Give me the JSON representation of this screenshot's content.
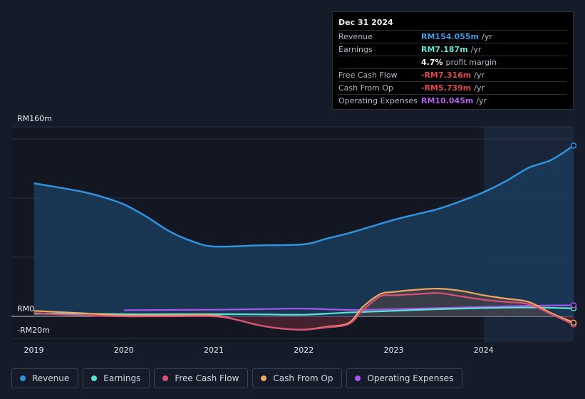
{
  "tooltip": {
    "date": "Dec 31 2024",
    "rows": [
      {
        "label": "Revenue",
        "value": "RM154.055m",
        "unit": "/yr",
        "color": "#3b9be8"
      },
      {
        "label": "Earnings",
        "value": "RM7.187m",
        "unit": "/yr",
        "color": "#5fe3d3"
      },
      {
        "label": "",
        "value": "4.7%",
        "unit": "profit margin",
        "color": "#ffffff"
      },
      {
        "label": "Free Cash Flow",
        "value": "-RM7.316m",
        "unit": "/yr",
        "color": "#e0464d"
      },
      {
        "label": "Cash From Op",
        "value": "-RM5.739m",
        "unit": "/yr",
        "color": "#e0464d"
      },
      {
        "label": "Operating Expenses",
        "value": "RM10.045m",
        "unit": "/yr",
        "color": "#b35cf0"
      }
    ]
  },
  "legend": [
    {
      "label": "Revenue",
      "color": "#2f93e0"
    },
    {
      "label": "Earnings",
      "color": "#5fe3d3"
    },
    {
      "label": "Free Cash Flow",
      "color": "#d9507a"
    },
    {
      "label": "Cash From Op",
      "color": "#f0a860"
    },
    {
      "label": "Operating Expenses",
      "color": "#a855f0"
    }
  ],
  "chart_data": {
    "type": "line",
    "y_tick_labels": [
      "RM160m",
      "RM0",
      "-RM20m"
    ],
    "ylim": [
      -20,
      160
    ],
    "xlim": [
      2018.75,
      2025.0
    ],
    "x_ticks": [
      2019,
      2020,
      2021,
      2022,
      2023,
      2024
    ],
    "x_tick_labels": [
      "2019",
      "2020",
      "2021",
      "2022",
      "2023",
      "2024"
    ],
    "highlight_from": 2024.0,
    "legend_position": "bottom",
    "series": [
      {
        "name": "Revenue",
        "color": "#2f93e0",
        "x": [
          2019.0,
          2019.5,
          2019.75,
          2020.0,
          2020.25,
          2020.5,
          2020.75,
          2021.0,
          2021.5,
          2022.0,
          2022.25,
          2022.5,
          2022.75,
          2023.0,
          2023.25,
          2023.5,
          2023.75,
          2024.0,
          2024.25,
          2024.5,
          2024.75,
          2025.0
        ],
        "y": [
          120,
          113,
          108,
          101,
          90,
          77,
          68,
          63,
          64,
          65,
          70,
          75,
          81,
          87,
          92,
          97,
          104,
          112,
          122,
          134,
          141,
          154
        ]
      },
      {
        "name": "Earnings",
        "color": "#5fe3d3",
        "x": [
          2019.0,
          2019.5,
          2020.0,
          2020.5,
          2021.0,
          2021.5,
          2022.0,
          2022.5,
          2023.0,
          2023.5,
          2024.0,
          2024.5,
          2025.0
        ],
        "y": [
          2.5,
          2.5,
          2,
          2,
          2,
          1.8,
          1.5,
          3.5,
          5,
          6.5,
          7.5,
          8,
          7.2
        ]
      },
      {
        "name": "Free Cash Flow",
        "color": "#d9507a",
        "x": [
          2019.0,
          2019.5,
          2020.0,
          2020.5,
          2021.0,
          2021.25,
          2021.5,
          2021.75,
          2022.0,
          2022.25,
          2022.5,
          2022.65,
          2022.85,
          2023.0,
          2023.25,
          2023.5,
          2023.75,
          2024.0,
          2024.25,
          2024.5,
          2024.75,
          2025.0
        ],
        "y": [
          3,
          1,
          0,
          0,
          0,
          -3,
          -8,
          -11,
          -12,
          -10,
          -7,
          5,
          18,
          19,
          20,
          21,
          18,
          15,
          13,
          11,
          2,
          -7.3
        ]
      },
      {
        "name": "Cash From Op",
        "color": "#f0a860",
        "x": [
          2019.0,
          2019.5,
          2020.0,
          2020.5,
          2021.0,
          2021.25,
          2021.5,
          2021.75,
          2022.0,
          2022.25,
          2022.5,
          2022.65,
          2022.85,
          2023.0,
          2023.25,
          2023.5,
          2023.75,
          2024.0,
          2024.25,
          2024.5,
          2024.75,
          2025.0
        ],
        "y": [
          5,
          3,
          1,
          1,
          1,
          -3,
          -8,
          -11,
          -12,
          -9.5,
          -6,
          8,
          20,
          22,
          24,
          25,
          23,
          19,
          16,
          13,
          3,
          -5.7
        ]
      },
      {
        "name": "Operating Expenses",
        "color": "#a855f0",
        "x": [
          2020.0,
          2020.5,
          2021.0,
          2021.5,
          2022.0,
          2022.5,
          2023.0,
          2023.5,
          2024.0,
          2024.5,
          2025.0
        ],
        "y": [
          5.5,
          5.8,
          6,
          6.5,
          7,
          5.8,
          6.5,
          7.5,
          8.5,
          9.5,
          10
        ]
      }
    ]
  }
}
